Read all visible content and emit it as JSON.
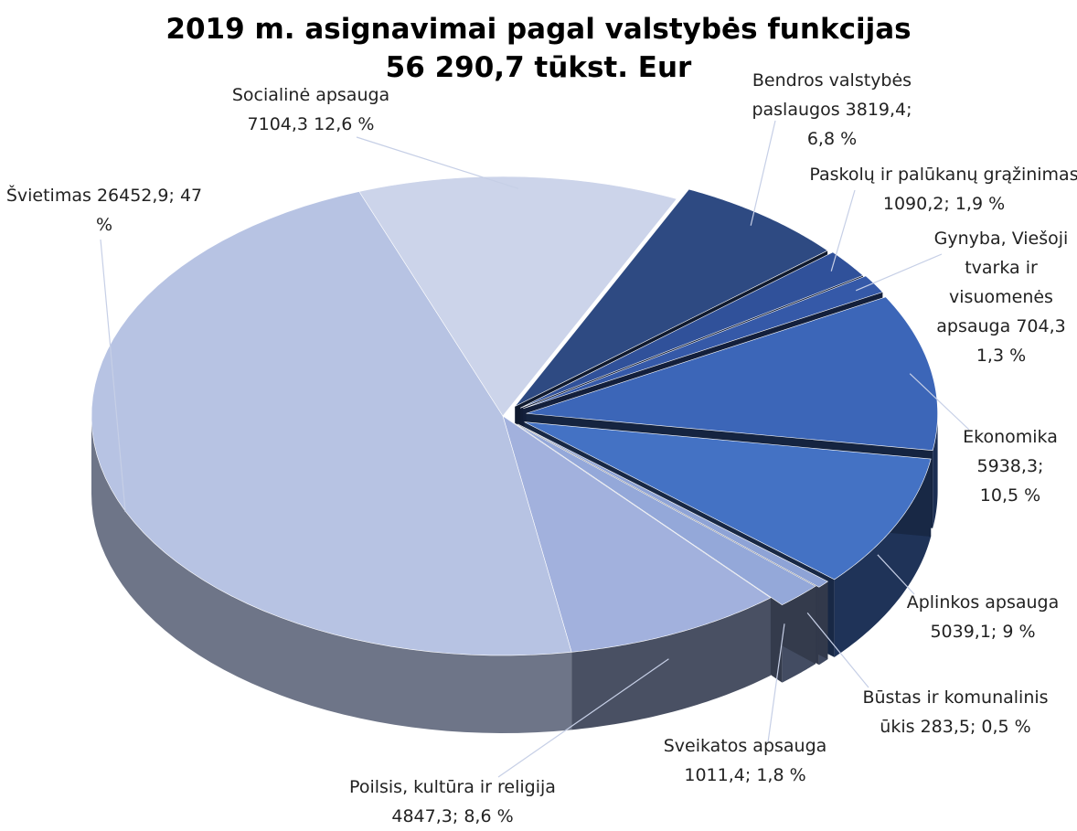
{
  "chart_data": {
    "type": "pie3d",
    "title": "2019 m. asignavimai pagal valstybės funkcijas",
    "subtitle": "56 290,7 tūkst. Eur",
    "categories": [
      "Bendros valstybės paslaugos",
      "Paskolų ir palūkanų grąžinimas",
      "Gynyba, Viešoji tvarka ir visuomenės apsauga",
      "Ekonomika",
      "Aplinkos apsauga",
      "Būstas ir komunalinis ūkis",
      "Sveikatos apsauga",
      "Poilsis, kultūra ir religija",
      "Švietimas",
      "Socialinė apsauga"
    ],
    "values": [
      3819.4,
      1090.2,
      704.3,
      5938.3,
      5039.1,
      283.5,
      1011.4,
      4847.3,
      26452.9,
      7104.3
    ],
    "value_labels": [
      "3819,4;",
      "1090,2;",
      "704,3",
      "5938,3;",
      "5039,1;",
      "283,5;",
      "1011,4;",
      "4847,3;",
      "26452,9;",
      "7104,3"
    ],
    "percents": [
      6.8,
      1.9,
      1.3,
      10.5,
      9,
      0.5,
      1.8,
      8.6,
      47,
      12.6
    ],
    "percent_labels": [
      "6,8 %",
      "1,9 %",
      "1,3 %",
      "10,5 %",
      "9 %",
      "0,5 %",
      "1,8 %",
      "8,6 %",
      "47 %",
      "12,6 %"
    ],
    "colors": [
      "#2e4a82",
      "#30519a",
      "#3559a8",
      "#3c66b8",
      "#4472c4",
      "#8ea3d6",
      "#94a8d9",
      "#a2b1dd",
      "#b7c3e3",
      "#ccd4ea"
    ]
  }
}
